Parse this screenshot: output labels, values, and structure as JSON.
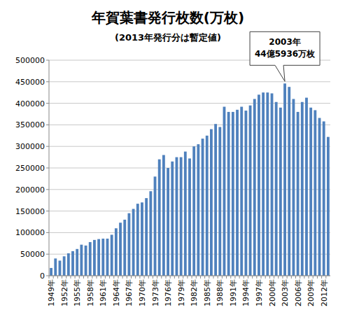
{
  "chart_data": {
    "type": "bar",
    "title": "年賀葉書発行枚数(万枚)",
    "subtitle": "(2013年発行分は暫定値)",
    "annotation": {
      "text": [
        "2003年",
        "44億5936万枚"
      ]
    },
    "categories": [
      "1949年",
      null,
      null,
      "1952年",
      null,
      null,
      "1955年",
      null,
      null,
      "1958年",
      null,
      null,
      "1961年",
      null,
      null,
      "1964年",
      null,
      null,
      "1967年",
      null,
      null,
      "1970年",
      null,
      null,
      "1973年",
      null,
      null,
      "1976年",
      null,
      null,
      "1979年",
      null,
      null,
      "1982年",
      null,
      null,
      "1985年",
      null,
      null,
      "1988年",
      null,
      null,
      "1991年",
      null,
      null,
      "1994年",
      null,
      null,
      "1997年",
      null,
      null,
      "2000年",
      null,
      null,
      "2003年",
      null,
      null,
      "2006年",
      null,
      null,
      "2009年",
      null,
      null,
      "2012年",
      null
    ],
    "values": [
      18000,
      40000,
      35000,
      45000,
      52000,
      57000,
      62000,
      72000,
      70000,
      78000,
      83000,
      85000,
      86000,
      86000,
      95000,
      110000,
      123000,
      130000,
      145000,
      155000,
      167000,
      170000,
      180000,
      196000,
      230000,
      270000,
      280000,
      250000,
      265000,
      275000,
      275000,
      288000,
      272000,
      300000,
      305000,
      318000,
      325000,
      340000,
      352000,
      345000,
      392000,
      380000,
      380000,
      385000,
      392000,
      383000,
      395000,
      410000,
      420000,
      425000,
      425000,
      423000,
      403000,
      390000,
      445936,
      438000,
      410000,
      380000,
      403000,
      413000,
      390000,
      384000,
      366000,
      358000,
      322000
    ],
    "color": "#4f81bd",
    "ylim": [
      0,
      500000
    ],
    "yticks": [
      0,
      50000,
      100000,
      150000,
      200000,
      250000,
      300000,
      350000,
      400000,
      450000,
      500000
    ],
    "grid": true
  }
}
